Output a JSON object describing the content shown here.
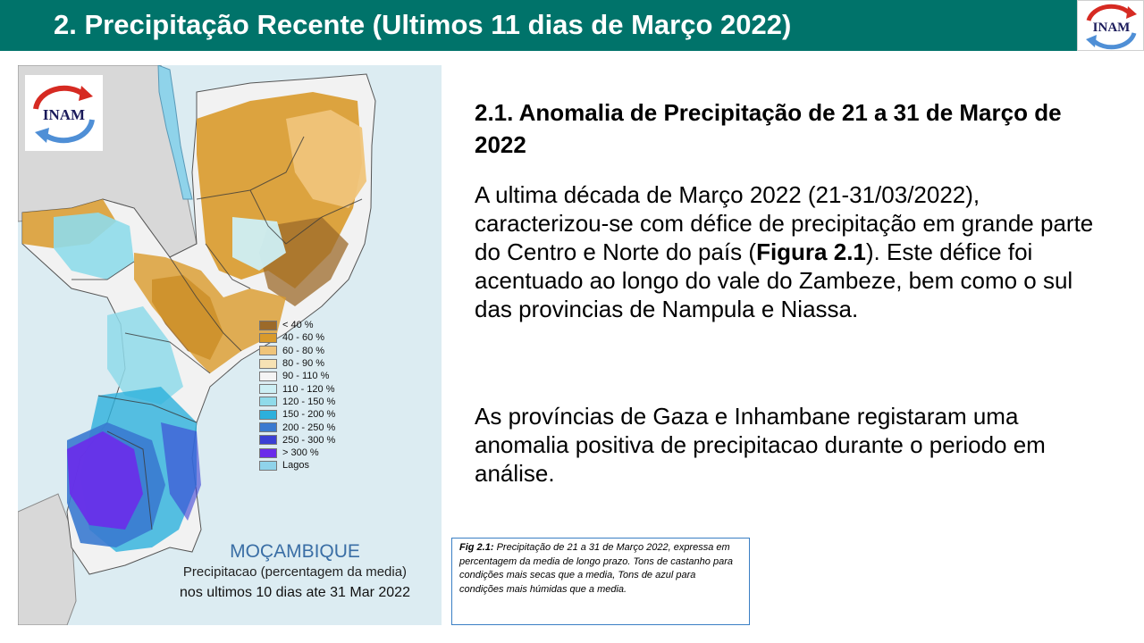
{
  "header": {
    "title": "2. Precipitação Recente (Ultimos 11 dias de Março 2022)",
    "logo_text": "INAM"
  },
  "map": {
    "logo_text": "INAM",
    "legend": [
      {
        "label": "< 40 %",
        "color": "#9c6a2a"
      },
      {
        "label": "40 - 60 %",
        "color": "#d99a2b"
      },
      {
        "label": "60 - 80 %",
        "color": "#efc47a"
      },
      {
        "label": "80 - 90 %",
        "color": "#f6e2b4"
      },
      {
        "label": "90 - 110 %",
        "color": "#f4f4f4"
      },
      {
        "label": "110 - 120 %",
        "color": "#cdeff4"
      },
      {
        "label": "120 - 150 %",
        "color": "#8fdbea"
      },
      {
        "label": "150 - 200 %",
        "color": "#2cb0dc"
      },
      {
        "label": "200 - 250 %",
        "color": "#3a7ad0"
      },
      {
        "label": "250 - 300 %",
        "color": "#3b3fd4"
      },
      {
        "label": "> 300 %",
        "color": "#6a2bea"
      },
      {
        "label": "Lagos",
        "color": "#8fd3ea"
      }
    ],
    "country": "MOÇAMBIQUE",
    "subtitle1": "Precipitacao (percentagem da media)",
    "subtitle2": "nos ultimos 10 dias ate 31 Mar 2022"
  },
  "content": {
    "section_title": "2.1. Anomalia de Precipitação de 21 a 31 de  Março de 2022",
    "para1_a": "A ultima década de Março 2022 (21-31/03/2022), caracterizou-se com  défice de precipitação em grande parte do Centro e Norte do país (",
    "para1_bold": "Figura 2.1",
    "para1_b": "). Este défice foi acentuado ao longo do vale do Zambeze, bem como o sul das provincias de Nampula e Niassa.",
    "para2": "As províncias de Gaza e Inhambane registaram uma anomalia positiva de precipitacao durante o periodo em análise."
  },
  "figure_caption": {
    "label": "Fig 2.1:",
    "text": " Precipitação de 21 a 31  de Março 2022, expressa em percentagem da media de longo prazo. Tons de castanho para condições mais secas que a media, Tons de azul para condições mais húmidas que a media."
  }
}
